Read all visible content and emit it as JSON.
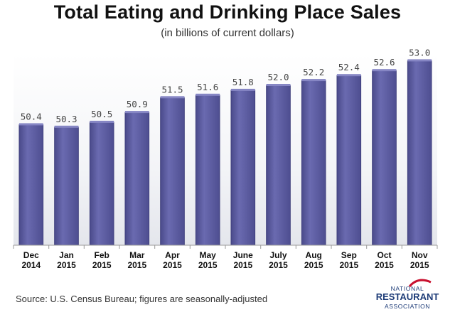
{
  "chart_data": {
    "type": "bar",
    "title": "Total Eating and Drinking Place Sales",
    "subtitle": "(in billions of current dollars)",
    "categories": [
      [
        "Dec",
        "2014"
      ],
      [
        "Jan",
        "2015"
      ],
      [
        "Feb",
        "2015"
      ],
      [
        "Mar",
        "2015"
      ],
      [
        "Apr",
        "2015"
      ],
      [
        "May",
        "2015"
      ],
      [
        "June",
        "2015"
      ],
      [
        "July",
        "2015"
      ],
      [
        "Aug",
        "2015"
      ],
      [
        "Sep",
        "2015"
      ],
      [
        "Oct",
        "2015"
      ],
      [
        "Nov",
        "2015"
      ]
    ],
    "values": [
      50.4,
      50.3,
      50.5,
      50.9,
      51.5,
      51.6,
      51.8,
      52.0,
      52.2,
      52.4,
      52.6,
      53.0
    ],
    "value_labels": [
      "50.4",
      "50.3",
      "50.5",
      "50.9",
      "51.5",
      "51.6",
      "51.8",
      "52.0",
      "52.2",
      "52.4",
      "52.6",
      "53.0"
    ],
    "ylim": [
      45.5,
      53.3
    ],
    "grid": false,
    "legend": false,
    "bar_color": "#5d5d9e"
  },
  "footer": {
    "source": "Source: U.S. Census Bureau; figures are seasonally-adjusted"
  },
  "logo": {
    "line1": "NATIONAL",
    "line2": "RESTAURANT",
    "line3": "ASSOCIATION",
    "accent_color": "#c8102e",
    "text_color": "#1e3c78"
  }
}
